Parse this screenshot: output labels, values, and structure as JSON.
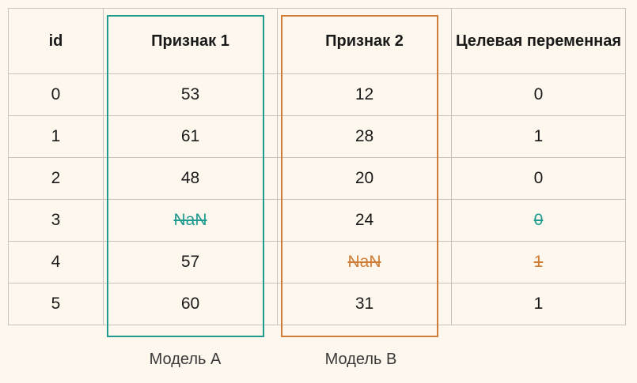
{
  "table": {
    "headers": [
      "id",
      "Признак 1",
      "Признак 2",
      "Целевая переменная"
    ],
    "rows": [
      [
        "0",
        "53",
        "12",
        "0"
      ],
      [
        "1",
        "61",
        "28",
        "1"
      ],
      [
        "2",
        "48",
        "20",
        "0"
      ],
      [
        "3",
        "NaN",
        "24",
        "0"
      ],
      [
        "4",
        "57",
        "NaN",
        "1"
      ],
      [
        "5",
        "60",
        "31",
        "1"
      ]
    ],
    "excluded_by_model_a": [
      {
        "row": 3,
        "col": 1
      },
      {
        "row": 3,
        "col": 3
      }
    ],
    "excluded_by_model_b": [
      {
        "row": 4,
        "col": 2
      },
      {
        "row": 4,
        "col": 3
      }
    ]
  },
  "models": {
    "a": {
      "label": "Модель A",
      "color": "#1f9a8f"
    },
    "b": {
      "label": "Модель B",
      "color": "#cf7d36"
    }
  }
}
